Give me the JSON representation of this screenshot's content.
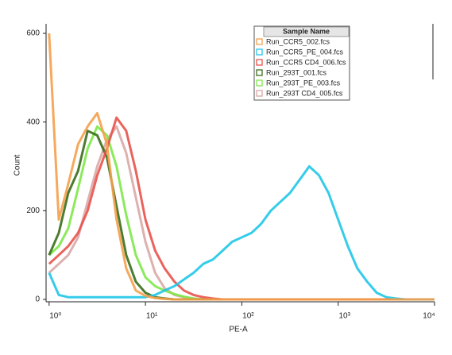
{
  "chart_data": {
    "type": "line",
    "x_label": "PE-A",
    "y_label": "Count",
    "log_x": true,
    "legend_title": "Sample Name",
    "legend": "top-right",
    "x": [
      1,
      1.26,
      1.58,
      2,
      2.51,
      3.16,
      3.98,
      5.01,
      6.31,
      7.94,
      10,
      12.6,
      15.8,
      20,
      25.1,
      31.6,
      39.8,
      50.1,
      63.1,
      79.4,
      100,
      126,
      158,
      200,
      251,
      316,
      398,
      501,
      631,
      794,
      1000,
      1260,
      1580,
      2000,
      2510,
      3160,
      3980,
      5010,
      6310,
      7940,
      10000
    ],
    "xlim": [
      0.93,
      10000
    ],
    "xticks": [
      {
        "value": 1,
        "label": "10⁰"
      },
      {
        "value": 10,
        "label": "10¹"
      },
      {
        "value": 100,
        "label": "10²"
      },
      {
        "value": 1000,
        "label": "10³"
      },
      {
        "value": 10000,
        "label": "10⁴"
      }
    ],
    "ylim": [
      0,
      600
    ],
    "yticks": [
      0,
      200,
      400,
      600
    ],
    "series": [
      {
        "name": "Run_CCR5_002.fcs",
        "color": "#f5a04a",
        "values": [
          600,
          180,
          260,
          350,
          390,
          420,
          350,
          180,
          70,
          20,
          8,
          3,
          1,
          0,
          0,
          0,
          0,
          0,
          0,
          0,
          0,
          0,
          0,
          0,
          0,
          0,
          0,
          0,
          0,
          0,
          0,
          0,
          0,
          0,
          0,
          0,
          0,
          0,
          0,
          0,
          0
        ]
      },
      {
        "name": "Run_CCR5_PE_004.fcs",
        "color": "#1fc6e8",
        "values": [
          60,
          10,
          5,
          5,
          5,
          5,
          5,
          5,
          5,
          5,
          5,
          10,
          20,
          30,
          45,
          60,
          80,
          90,
          110,
          130,
          140,
          150,
          170,
          200,
          220,
          240,
          270,
          300,
          280,
          240,
          180,
          120,
          70,
          40,
          15,
          5,
          2,
          0,
          0,
          0,
          0
        ]
      },
      {
        "name": "Run_CCR5 CD4_006.fcs",
        "color": "#e8524a",
        "values": [
          80,
          100,
          120,
          150,
          200,
          280,
          340,
          410,
          380,
          290,
          180,
          110,
          70,
          40,
          20,
          10,
          5,
          2,
          0,
          0,
          0,
          0,
          0,
          0,
          0,
          0,
          0,
          0,
          0,
          0,
          0,
          0,
          0,
          0,
          0,
          0,
          0,
          0,
          0,
          0,
          0
        ]
      },
      {
        "name": "Run_293T_001.fcs",
        "color": "#3a6e1a",
        "values": [
          100,
          150,
          240,
          290,
          380,
          370,
          320,
          210,
          100,
          40,
          15,
          5,
          2,
          0,
          0,
          0,
          0,
          0,
          0,
          0,
          0,
          0,
          0,
          0,
          0,
          0,
          0,
          0,
          0,
          0,
          0,
          0,
          0,
          0,
          0,
          0,
          0,
          0,
          0,
          0,
          0
        ]
      },
      {
        "name": "Run_293T_PE_003.fcs",
        "color": "#7ee84a",
        "values": [
          100,
          120,
          160,
          250,
          340,
          390,
          370,
          300,
          190,
          100,
          50,
          30,
          20,
          12,
          6,
          2,
          0,
          0,
          0,
          0,
          0,
          0,
          0,
          0,
          0,
          0,
          0,
          0,
          0,
          0,
          0,
          0,
          0,
          0,
          0,
          0,
          0,
          0,
          0,
          0,
          0
        ]
      },
      {
        "name": "Run_293T CD4_005.fcs",
        "color": "#d9a8a6",
        "values": [
          60,
          80,
          100,
          140,
          220,
          300,
          360,
          390,
          330,
          230,
          130,
          60,
          25,
          10,
          5,
          2,
          0,
          0,
          0,
          0,
          0,
          0,
          0,
          0,
          0,
          0,
          0,
          0,
          0,
          0,
          0,
          0,
          0,
          0,
          0,
          0,
          0,
          0,
          0,
          0,
          0
        ]
      }
    ]
  }
}
